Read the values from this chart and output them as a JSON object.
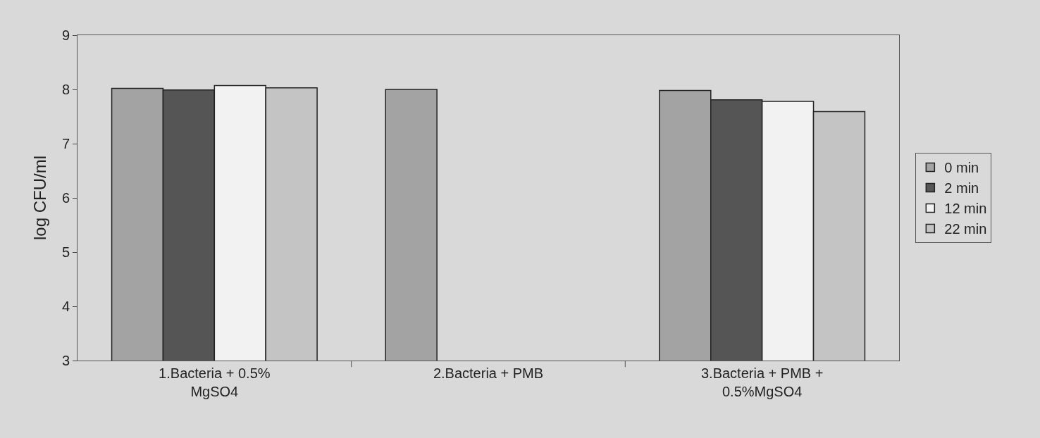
{
  "chart_data": {
    "type": "bar",
    "ylabel": "log CFU/ml",
    "categories": [
      "1.Bacteria + 0.5%\nMgSO4",
      "2.Bacteria + PMB",
      "3.Bacteria + PMB +\n0.5%MgSO4"
    ],
    "series": [
      {
        "name": "0 min",
        "color": "#a3a3a3",
        "values": [
          8.02,
          8.0,
          7.98
        ]
      },
      {
        "name": "2 min",
        "color": "#555555",
        "values": [
          7.99,
          null,
          7.81
        ]
      },
      {
        "name": "12 min",
        "color": "#f2f2f2",
        "values": [
          8.07,
          null,
          7.78
        ]
      },
      {
        "name": "22 min",
        "color": "#c4c4c4",
        "values": [
          8.03,
          null,
          7.59
        ]
      }
    ],
    "ylim": [
      3,
      9
    ],
    "yticks": [
      3,
      4,
      5,
      6,
      7,
      8,
      9
    ],
    "grid": false,
    "legend": "right"
  }
}
